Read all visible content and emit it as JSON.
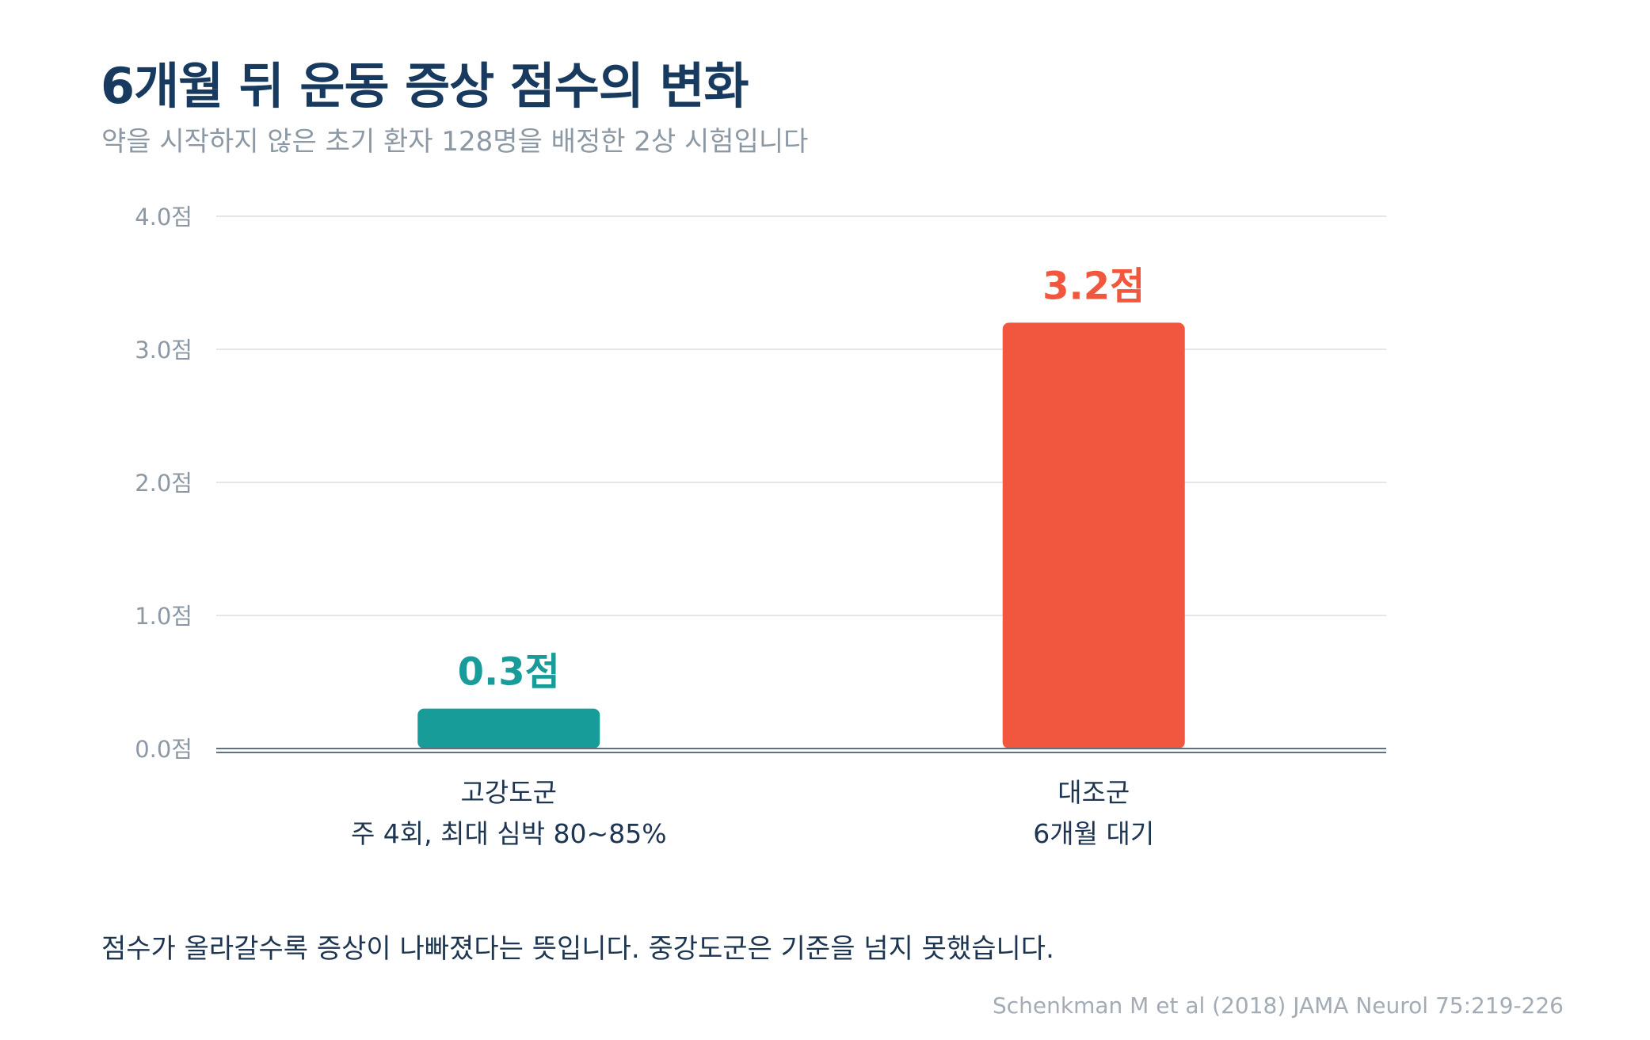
{
  "header": {
    "title": "6개월 뒤 운동 증상 점수의 변화",
    "subtitle": "약을 시작하지 않은 초기 환자 128명을 배정한 2상 시험입니다"
  },
  "chart_data": {
    "type": "bar",
    "categories": [
      [
        "고강도군",
        "주 4회, 최대 심박 80~85%"
      ],
      [
        "대조군",
        "6개월 대기"
      ]
    ],
    "values": [
      0.3,
      3.2
    ],
    "value_labels": [
      "0.3점",
      "3.2점"
    ],
    "colors": [
      "#179c9a",
      "#f0573e"
    ],
    "ylim": [
      0,
      4
    ],
    "yticks": [
      0,
      1,
      2,
      3,
      4
    ],
    "ytick_labels": [
      "0.0점",
      "1.0점",
      "2.0점",
      "3.0점",
      "4.0점"
    ],
    "grid": true,
    "legend": "none"
  },
  "footer": {
    "note": "점수가 올라갈수록 증상이 나빠졌다는 뜻입니다. 중강도군은 기준을 넘지 못했습니다.",
    "source": "Schenkman M et al (2018) JAMA Neurol 75:219-226"
  },
  "colors": {
    "title": "#173a5e",
    "subtitle": "#8c98a4",
    "grid": "#e4e7ea",
    "axis": "#5f7185",
    "tick": "#8c98a4",
    "category_text": "#1d3550"
  }
}
